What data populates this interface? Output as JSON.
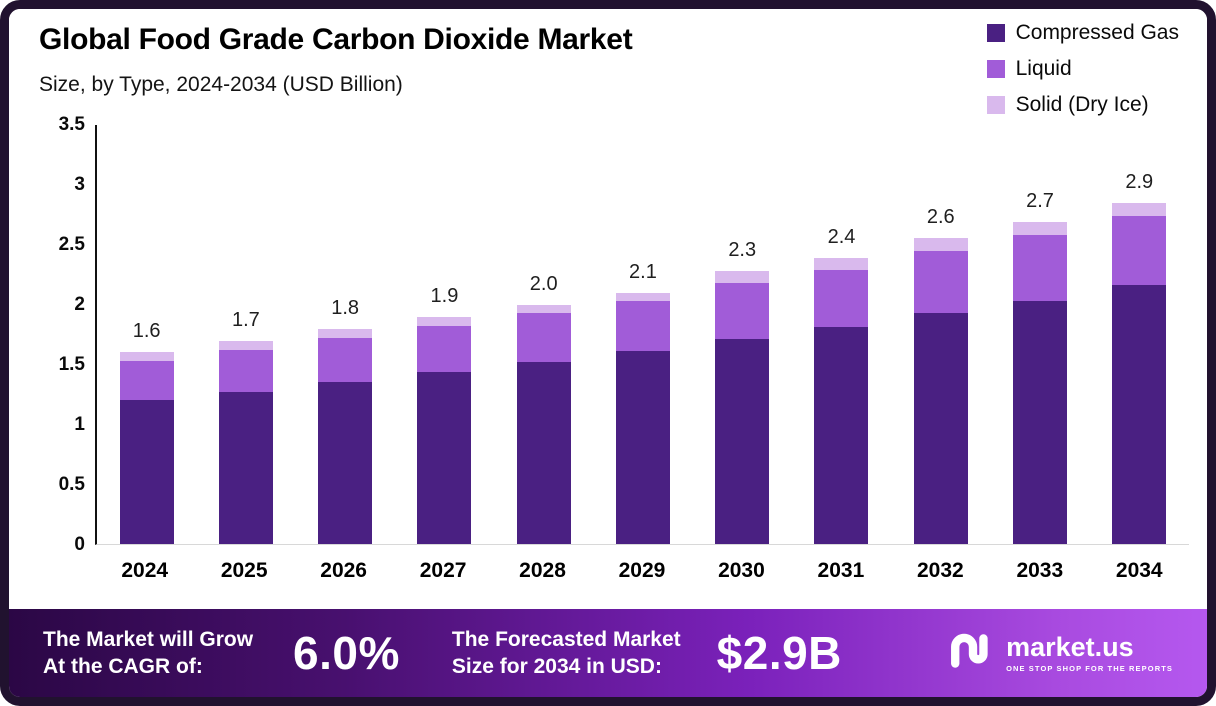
{
  "header": {
    "title": "Global Food Grade Carbon Dioxide Market",
    "subtitle": "Size, by Type, 2024-2034 (USD Billion)"
  },
  "legend": [
    {
      "label": "Compressed Gas",
      "color": "#4a2082"
    },
    {
      "label": "Liquid",
      "color": "#a15cd8"
    },
    {
      "label": "Solid (Dry Ice)",
      "color": "#d9b9ed"
    }
  ],
  "chart_data": {
    "type": "bar",
    "stacked": true,
    "title": "Global Food Grade Carbon Dioxide Market Size, by Type, 2024-2034 (USD Billion)",
    "categories": [
      "2024",
      "2025",
      "2026",
      "2027",
      "2028",
      "2029",
      "2030",
      "2031",
      "2032",
      "2033",
      "2034"
    ],
    "series": [
      {
        "name": "Compressed Gas",
        "color": "#4a2082",
        "values": [
          1.2,
          1.27,
          1.35,
          1.44,
          1.52,
          1.61,
          1.71,
          1.81,
          1.93,
          2.03,
          2.16
        ]
      },
      {
        "name": "Liquid",
        "color": "#a15cd8",
        "values": [
          0.33,
          0.35,
          0.37,
          0.38,
          0.41,
          0.42,
          0.47,
          0.48,
          0.52,
          0.55,
          0.58
        ]
      },
      {
        "name": "Solid (Dry Ice)",
        "color": "#d9b9ed",
        "values": [
          0.07,
          0.08,
          0.08,
          0.08,
          0.07,
          0.07,
          0.1,
          0.1,
          0.11,
          0.11,
          0.11
        ]
      }
    ],
    "totals": [
      "1.6",
      "1.7",
      "1.8",
      "1.9",
      "2.0",
      "2.1",
      "2.3",
      "2.4",
      "2.6",
      "2.7",
      "2.9"
    ],
    "ylim": [
      0,
      3.5
    ],
    "yticks": [
      "0",
      "0.5",
      "1",
      "1.5",
      "2",
      "2.5",
      "3",
      "3.5"
    ],
    "grid": false,
    "legend_position": "top-right",
    "xlabel": "",
    "ylabel": ""
  },
  "footer": {
    "cagr_label_line1": "The Market will Grow",
    "cagr_label_line2": "At the CAGR of:",
    "cagr_value": "6.0%",
    "forecast_label_line1": "The Forecasted Market",
    "forecast_label_line2": "Size for 2034 in USD:",
    "forecast_value": "$2.9B",
    "brand": "market.us",
    "brand_tagline": "ONE STOP SHOP FOR THE REPORTS",
    "icon": "marketus-logo-icon"
  },
  "colors": {
    "frame_border": "#21122f",
    "banner_gradient_start": "#2b0745",
    "banner_gradient_end": "#b558ef"
  }
}
